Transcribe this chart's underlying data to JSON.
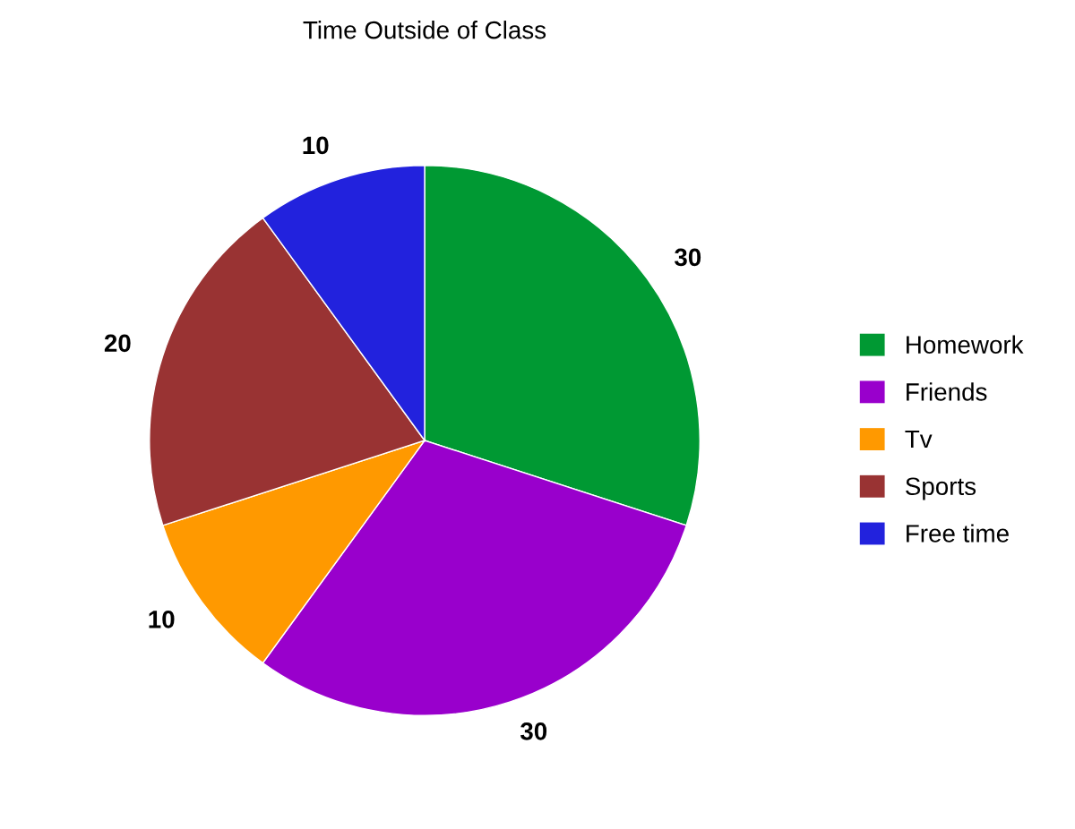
{
  "chart_data": {
    "type": "pie",
    "title": "Time Outside of Class",
    "categories": [
      "Homework",
      "Friends",
      "Tv",
      "Sports",
      "Free time"
    ],
    "values": [
      30,
      30,
      10,
      20,
      10
    ],
    "colors": [
      "#009933",
      "#9900cc",
      "#ff9900",
      "#993333",
      "#2222dd"
    ],
    "data_labels": true,
    "legend": "right"
  }
}
